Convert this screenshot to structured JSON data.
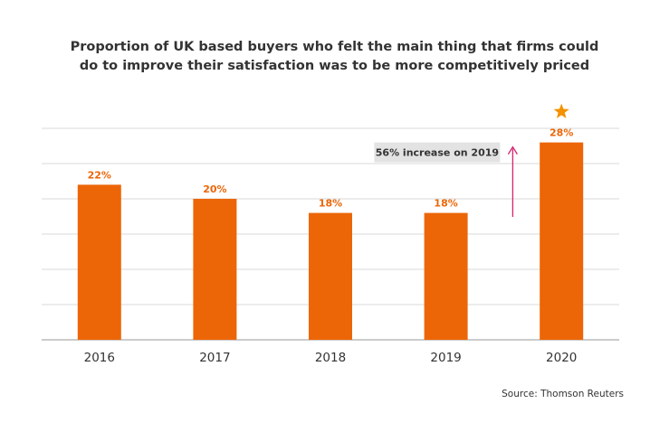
{
  "title_lines": [
    "Proportion of UK based buyers who felt the main thing that firms could",
    "do to improve their satisfaction was to be more competitively priced"
  ],
  "source": "Source: Thomson Reuters",
  "colors": {
    "bar": "#ec6608",
    "label": "#ec6608",
    "grid": "#d9d9d9",
    "axis": "#999999",
    "arrow": "#d6246e",
    "star": "#f39200",
    "annotation_bg": "#e3e3e3"
  },
  "chart_data": {
    "type": "bar",
    "title": "Proportion of UK based buyers who felt the main thing that firms could do to improve their satisfaction was to be more competitively priced",
    "categories": [
      "2016",
      "2017",
      "2018",
      "2019",
      "2020"
    ],
    "values": [
      22,
      20,
      18,
      18,
      28
    ],
    "data_labels": [
      "22%",
      "20%",
      "18%",
      "18%",
      "28%"
    ],
    "ylim": [
      0,
      30
    ],
    "grid": true,
    "y_tick_labels_shown": false,
    "highlight": {
      "category": "2020",
      "marker": "star-icon",
      "annotation": "56% increase on 2019"
    }
  }
}
